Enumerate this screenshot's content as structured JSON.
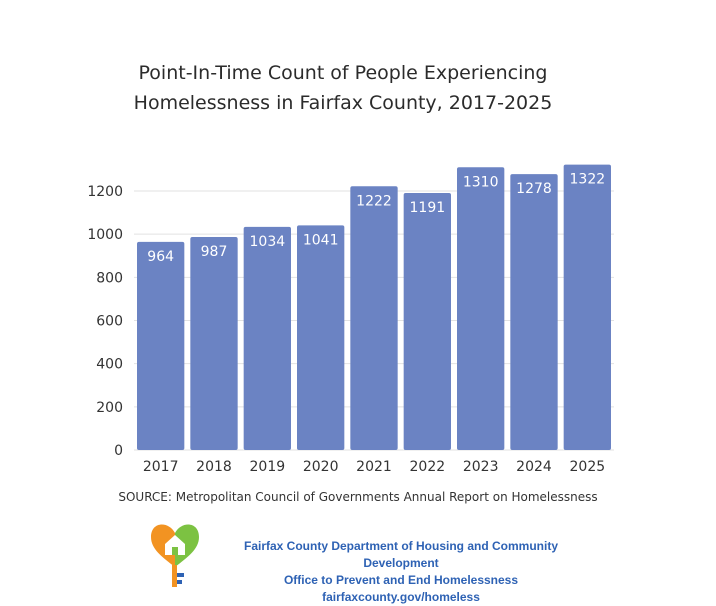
{
  "chart_data": {
    "type": "bar",
    "title": "Point-In-Time Count of People Experiencing Homelessness in Fairfax County, 2017-2025",
    "title_lines": [
      "Point-In-Time Count of People Experiencing",
      "Homelessness in Fairfax County, 2017-2025"
    ],
    "categories": [
      "2017",
      "2018",
      "2019",
      "2020",
      "2021",
      "2022",
      "2023",
      "2024",
      "2025"
    ],
    "values": [
      964,
      987,
      1034,
      1041,
      1222,
      1191,
      1310,
      1278,
      1322
    ],
    "data_labels": [
      "964",
      "987",
      "1034",
      "1041",
      "1222",
      "1191",
      "1310",
      "1278",
      "1322"
    ],
    "xlabel": "",
    "ylabel": "",
    "ylim": [
      0,
      1200
    ],
    "yticks": [
      0,
      200,
      400,
      600,
      800,
      1000,
      1200
    ],
    "grid": true,
    "legend": "none",
    "bar_color": "#6b83c3"
  },
  "source_text": "SOURCE: Metropolitan Council of Governments Annual Report on Homelessness",
  "org": {
    "line1": "Fairfax County Department of Housing and Community Development",
    "line2": "Office to Prevent and End Homelessness",
    "line3": "fairfaxcounty.gov/homeless",
    "color": "#2e62b4"
  },
  "logo": {
    "icon": "heart-house-key-icon",
    "colors": {
      "green": "#7cc242",
      "orange": "#f29322",
      "blue": "#2e62b4"
    }
  }
}
